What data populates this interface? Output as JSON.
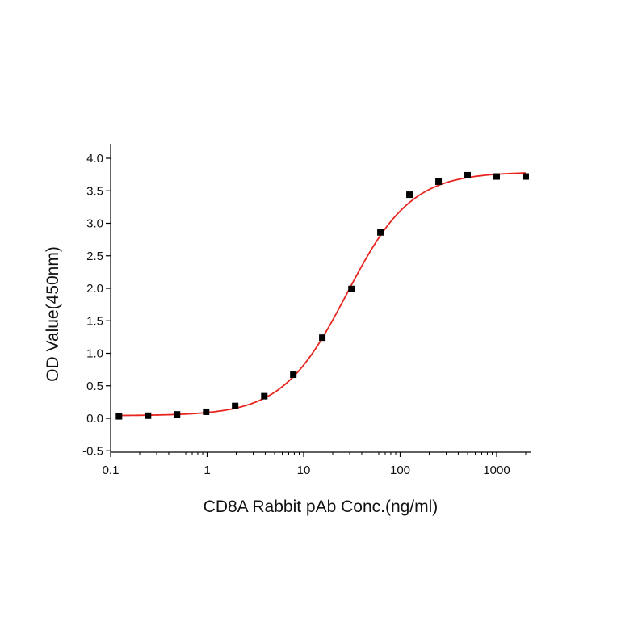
{
  "chart_data": {
    "type": "scatter",
    "title": "",
    "xlabel": "CD8A Rabbit pAb Conc.(ng/ml)",
    "ylabel": "OD Value(450nm)",
    "xscale": "log",
    "xlim": [
      0.1,
      2500
    ],
    "ylim": [
      -0.5,
      4.2
    ],
    "grid": false,
    "legend": "none",
    "x_ticks": [
      {
        "value": 0.1,
        "label": "0.1"
      },
      {
        "value": 1,
        "label": "1"
      },
      {
        "value": 10,
        "label": "10"
      },
      {
        "value": 100,
        "label": "100"
      },
      {
        "value": 1000,
        "label": "1000"
      }
    ],
    "y_ticks": [
      {
        "value": 4.0,
        "label": "4.0"
      },
      {
        "value": 3.5,
        "label": "3.5"
      },
      {
        "value": 3.0,
        "label": "3.0"
      },
      {
        "value": 2.5,
        "label": "2.5"
      },
      {
        "value": 2.0,
        "label": "2.0"
      },
      {
        "value": 1.5,
        "label": "1.5"
      },
      {
        "value": 1.0,
        "label": "1.0"
      },
      {
        "value": 0.5,
        "label": "0.5"
      },
      {
        "value": 0.0,
        "label": "0.0"
      },
      {
        "value": -0.5,
        "label": "-0.5"
      }
    ],
    "series": [
      {
        "marker": "square",
        "color": "#000000",
        "x": [
          0.122,
          0.244,
          0.488,
          0.977,
          1.95,
          3.91,
          7.81,
          15.6,
          31.3,
          62.5,
          125,
          250,
          500,
          1000,
          2000
        ],
        "y": [
          0.03,
          0.04,
          0.06,
          0.1,
          0.19,
          0.34,
          0.67,
          1.24,
          1.99,
          2.86,
          3.44,
          3.64,
          3.74,
          3.72,
          3.72
        ]
      }
    ],
    "fit_curve": {
      "model": "4PL",
      "color": "#e8251f",
      "bottom": 0.04,
      "top": 3.79,
      "ec50": 28,
      "hill": 1.3
    }
  }
}
